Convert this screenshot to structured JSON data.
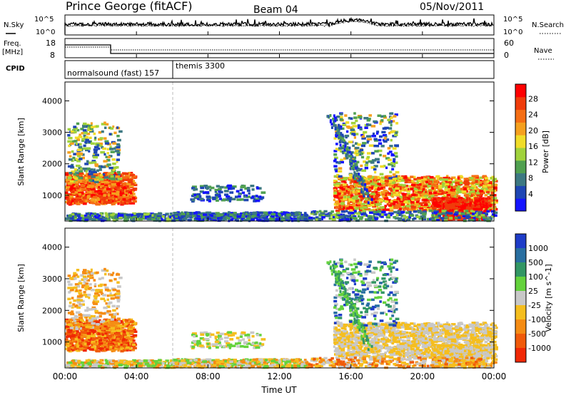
{
  "header": {
    "station": "Prince George (fitACF)",
    "beam": "Beam 04",
    "date": "05/Nov/2011"
  },
  "noise_panel": {
    "left_label": "N.Sky",
    "right_label": "N.Search",
    "left_ticks": [
      "10^5",
      "10^0"
    ],
    "right_ticks": [
      "10^5",
      "10^0"
    ]
  },
  "freq_panel": {
    "left_label_line1": "Freq.",
    "left_label_line2": "[MHz]",
    "left_ticks": [
      "18",
      "8"
    ],
    "right_label": "Nave",
    "right_ticks": [
      "60",
      "0"
    ]
  },
  "cpid_panel": {
    "label": "CPID",
    "entries": [
      {
        "text": "normalsound (fast) 157",
        "start_hour": 0.0
      },
      {
        "text": "themis 3300",
        "start_hour": 6.0
      }
    ]
  },
  "chart_data": [
    {
      "type": "heatmap",
      "name": "power",
      "ylabel": "Slant Range [km]",
      "ylim": [
        180,
        4600
      ],
      "yticks": [
        1000,
        2000,
        3000,
        4000
      ],
      "xlim": [
        0,
        24
      ],
      "colorbar": {
        "label": "Power [dB]",
        "ticks": [
          "4",
          "8",
          "12",
          "16",
          "20",
          "24",
          "28"
        ],
        "colors": [
          "#1414ff",
          "#1e46b4",
          "#3c7882",
          "#50a050",
          "#a0d23c",
          "#f0dc28",
          "#f5a01e",
          "#f56e14",
          "#f03c0a",
          "#ff0000"
        ]
      }
    },
    {
      "type": "heatmap",
      "name": "velocity",
      "ylabel": "Slant Range [km]",
      "ylim": [
        180,
        4600
      ],
      "yticks": [
        1000,
        2000,
        3000,
        4000
      ],
      "xlim": [
        0,
        24
      ],
      "colorbar": {
        "label": "Velocity [m s^-1]",
        "ticks": [
          "1000",
          "500",
          "100",
          "25",
          "-25",
          "-100",
          "-500",
          "-1000"
        ],
        "colors": [
          "#1e3cc8",
          "#286ea0",
          "#329664",
          "#64d23c",
          "#c8c8c8",
          "#f5be1e",
          "#f58c14",
          "#f05a0a",
          "#f02805"
        ]
      }
    }
  ],
  "xaxis": {
    "label": "Time UT",
    "ticks": [
      "00:00",
      "04:00",
      "08:00",
      "12:00",
      "16:00",
      "20:00",
      "00:00"
    ]
  }
}
